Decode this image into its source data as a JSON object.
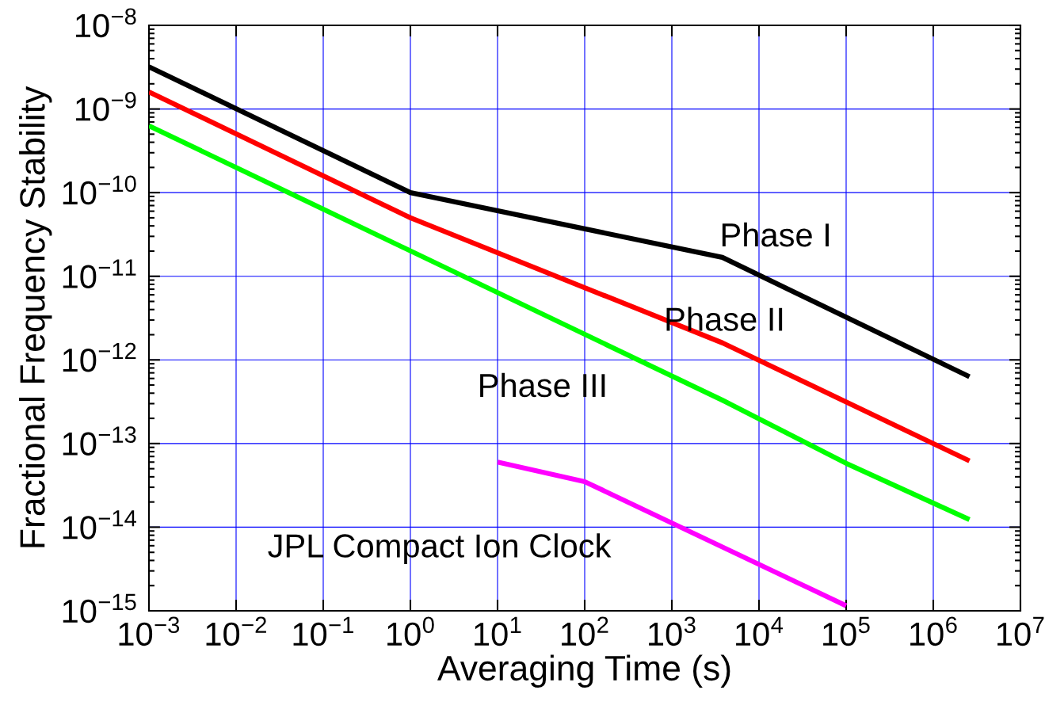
{
  "chart_data": {
    "type": "line",
    "xlabel": "Averaging Time (s)",
    "ylabel": "Fractional Frequency Stability",
    "log": "xy",
    "grid": true,
    "line_style": "solid",
    "marker": "none",
    "series": [
      {
        "name": "Phase I",
        "color": "#000000",
        "x": [
          0.001,
          1,
          3800,
          2600000
        ],
        "values": [
          3.2e-09,
          1e-10,
          1.68e-11,
          6.3e-13
        ]
      },
      {
        "name": "Phase II",
        "color": "#ff0000",
        "x": [
          0.001,
          1,
          3800,
          2600000
        ],
        "values": [
          1.6e-09,
          5e-11,
          1.6e-12,
          6.2e-14
        ]
      },
      {
        "name": "Phase III",
        "color": "#00ff00",
        "x": [
          0.001,
          3800,
          100000,
          2600000
        ],
        "values": [
          6.3e-10,
          3.3e-13,
          5.8e-14,
          1.23e-14
        ]
      },
      {
        "name": "JPL Compact Ion Clock",
        "color": "#ff00ff",
        "x": [
          10,
          100,
          100000
        ],
        "values": [
          6e-14,
          3.5e-14,
          1.15e-15
        ]
      }
    ],
    "xlim": [
      0.001,
      10000000
    ],
    "ylim": [
      1e-15,
      1e-08
    ],
    "xticks": [
      {
        "value": 0.001,
        "label": "10$^{−3}$"
      },
      {
        "value": 0.01,
        "label": "10$^{−2}$"
      },
      {
        "value": 0.1,
        "label": "10$^{−1}$"
      },
      {
        "value": 1,
        "label": "10$^{0}$"
      },
      {
        "value": 10,
        "label": "10$^{1}$"
      },
      {
        "value": 100,
        "label": "10$^{2}$"
      },
      {
        "value": 1000,
        "label": "10$^{3}$"
      },
      {
        "value": 10000,
        "label": "10$^{4}$"
      },
      {
        "value": 100000,
        "label": "10$^{5}$"
      },
      {
        "value": 1000000,
        "label": "10$^{6}$"
      },
      {
        "value": 10000000,
        "label": "10$^{7}$"
      }
    ],
    "yticks": [
      {
        "value": 1e-15,
        "label": "10$^{−15}$"
      },
      {
        "value": 1e-14,
        "label": "10$^{−14}$"
      },
      {
        "value": 1e-13,
        "label": "10$^{−13}$"
      },
      {
        "value": 1e-12,
        "label": "10$^{−12}$"
      },
      {
        "value": 1e-11,
        "label": "10$^{−11}$"
      },
      {
        "value": 1e-10,
        "label": "10$^{−10}$"
      },
      {
        "value": 1e-09,
        "label": "10$^{−9}$"
      },
      {
        "value": 1e-08,
        "label": "10$^{−8}$"
      }
    ]
  }
}
